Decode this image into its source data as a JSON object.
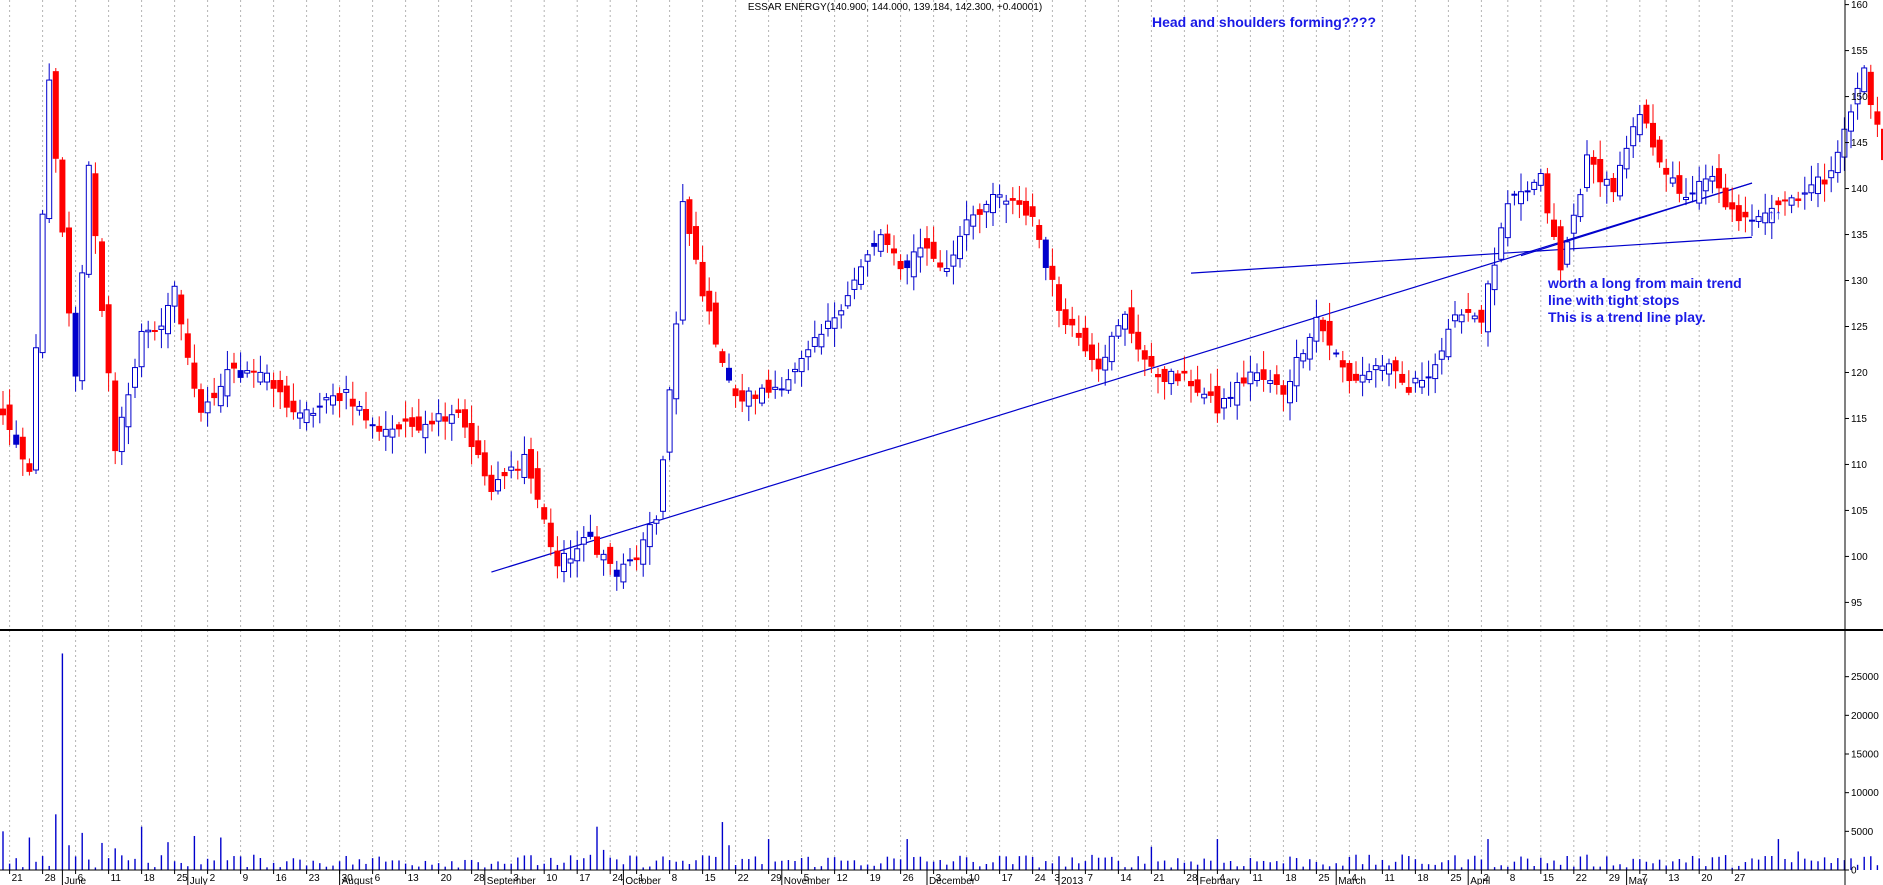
{
  "chart_data": [
    {
      "type": "candlestick",
      "title": "ESSAR ENERGY(140.900, 144.000, 139.184, 142.300, +0.40001)",
      "y_ticks": [
        "160",
        "155",
        "150",
        "145",
        "140",
        "135",
        "130",
        "125",
        "120",
        "115",
        "110",
        "105",
        "100",
        "95"
      ],
      "ylim": [
        92,
        160.5
      ],
      "grid": "vertical dotted",
      "colors": {
        "up": "#ffffff",
        "down": "#ff0000",
        "line": "#0000cc",
        "vol": "#0000cc",
        "neutral": "#0000cc"
      },
      "start_price": 117,
      "segments": [
        [
          5,
          109,
          "v"
        ],
        [
          3,
          151
        ],
        [
          4,
          119
        ],
        [
          2,
          142
        ],
        [
          4,
          112
        ],
        [
          4,
          124
        ],
        [
          2,
          124
        ],
        [
          3,
          129
        ],
        [
          4,
          115
        ],
        [
          5,
          121
        ],
        [
          4,
          120
        ],
        [
          6,
          115
        ],
        [
          7,
          118
        ],
        [
          4,
          114
        ],
        [
          5,
          114
        ],
        [
          8,
          116
        ],
        [
          5,
          107
        ],
        [
          5,
          111
        ],
        [
          5,
          99
        ],
        [
          5,
          102
        ],
        [
          4,
          98
        ],
        [
          3,
          100
        ],
        [
          3,
          104
        ],
        [
          3,
          125
        ],
        [
          1,
          138
        ],
        [
          4,
          126
        ],
        [
          4,
          117
        ],
        [
          5,
          118
        ],
        [
          4,
          120
        ],
        [
          5,
          125
        ],
        [
          4,
          130
        ],
        [
          4,
          135
        ],
        [
          3,
          131
        ],
        [
          3,
          134
        ],
        [
          4,
          131
        ],
        [
          3,
          137
        ],
        [
          5,
          139
        ],
        [
          5,
          137
        ],
        [
          4,
          127
        ],
        [
          6,
          121
        ],
        [
          4,
          126
        ],
        [
          4,
          120
        ],
        [
          6,
          119
        ],
        [
          4,
          116
        ],
        [
          5,
          120
        ],
        [
          5,
          118
        ],
        [
          5,
          126
        ],
        [
          5,
          119
        ],
        [
          5,
          121
        ],
        [
          4,
          118
        ],
        [
          4,
          121
        ],
        [
          4,
          127
        ],
        [
          3,
          126
        ],
        [
          4,
          138
        ],
        [
          5,
          141
        ],
        [
          3,
          131
        ],
        [
          4,
          143
        ],
        [
          4,
          140
        ],
        [
          4,
          148
        ],
        [
          6,
          139
        ],
        [
          5,
          141
        ],
        [
          4,
          136
        ],
        [
          4,
          138
        ],
        [
          4,
          139
        ],
        [
          5,
          141
        ],
        [
          3,
          146
        ],
        [
          3,
          153
        ],
        [
          4,
          140
        ],
        [
          4,
          138
        ],
        [
          5,
          135
        ],
        [
          5,
          140
        ],
        [
          4,
          139
        ],
        [
          4,
          142
        ],
        [
          4,
          137
        ],
        [
          4,
          133
        ],
        [
          4,
          135
        ],
        [
          4,
          141
        ],
        [
          5,
          145
        ],
        [
          4,
          142
        ],
        [
          5,
          143
        ],
        [
          6,
          142
        ]
      ],
      "volume": {
        "y_ticks": [
          "25000",
          "20000",
          "15000",
          "10000",
          "5000",
          "0"
        ],
        "ylim": [
          0,
          30000
        ],
        "spikes": [
          [
            0,
            5000
          ],
          [
            4,
            4200
          ],
          [
            8,
            7200
          ],
          [
            9,
            28000
          ],
          [
            10,
            3200
          ],
          [
            12,
            4800
          ],
          [
            15,
            3500
          ],
          [
            17,
            2800
          ],
          [
            21,
            5600
          ],
          [
            25,
            3600
          ],
          [
            29,
            4400
          ],
          [
            33,
            4200
          ],
          [
            90,
            5600
          ],
          [
            91,
            2600
          ],
          [
            109,
            6200
          ],
          [
            110,
            3200
          ],
          [
            116,
            4000
          ],
          [
            137,
            4000
          ],
          [
            174,
            3000
          ],
          [
            184,
            4000
          ],
          [
            225,
            4000
          ],
          [
            269,
            4000
          ],
          [
            272,
            2400
          ],
          [
            317,
            2800
          ],
          [
            326,
            3200
          ],
          [
            331,
            2000
          ]
        ]
      },
      "x_date_labels": [
        [
          "21",
          1
        ],
        [
          "28",
          6
        ],
        [
          "6",
          11
        ],
        [
          "11",
          16
        ],
        [
          "18",
          21
        ],
        [
          "25",
          26
        ],
        [
          "2",
          31
        ],
        [
          "9",
          36
        ],
        [
          "16",
          41
        ],
        [
          "23",
          46
        ],
        [
          "30",
          51
        ],
        [
          "6",
          56
        ],
        [
          "13",
          61
        ],
        [
          "20",
          66
        ],
        [
          "28",
          71
        ],
        [
          "3",
          77
        ],
        [
          "10",
          82
        ],
        [
          "17",
          87
        ],
        [
          "24",
          92
        ],
        [
          "1",
          96
        ],
        [
          "8",
          101
        ],
        [
          "15",
          106
        ],
        [
          "22",
          111
        ],
        [
          "29",
          116
        ],
        [
          "5",
          121
        ],
        [
          "12",
          126
        ],
        [
          "19",
          131
        ],
        [
          "26",
          136
        ],
        [
          "3",
          141
        ],
        [
          "10",
          146
        ],
        [
          "17",
          151
        ],
        [
          "24",
          156
        ],
        [
          "3",
          159
        ],
        [
          "7",
          164
        ],
        [
          "14",
          169
        ],
        [
          "21",
          174
        ],
        [
          "28",
          179
        ],
        [
          "4",
          184
        ],
        [
          "11",
          189
        ],
        [
          "18",
          194
        ],
        [
          "25",
          199
        ],
        [
          "4",
          204
        ],
        [
          "11",
          209
        ],
        [
          "18",
          214
        ],
        [
          "25",
          219
        ],
        [
          "2",
          224
        ],
        [
          "8",
          228
        ],
        [
          "15",
          233
        ],
        [
          "22",
          238
        ],
        [
          "29",
          243
        ],
        [
          "7",
          248
        ],
        [
          "13",
          252
        ],
        [
          "20",
          257
        ],
        [
          "27",
          262
        ]
      ],
      "x_month_labels": [
        [
          "June",
          9
        ],
        [
          "July",
          28
        ],
        [
          "August",
          51
        ],
        [
          "September",
          73
        ],
        [
          "October",
          94
        ],
        [
          "November",
          118
        ],
        [
          "December",
          140
        ],
        [
          "2013",
          160
        ],
        [
          "February",
          181
        ],
        [
          "March",
          202
        ],
        [
          "April",
          222
        ],
        [
          "May",
          246
        ]
      ],
      "trendlines": [
        {
          "from": [
            74,
            98.3
          ],
          "to": [
            265,
            140.6
          ]
        },
        {
          "from": [
            180,
            130.8
          ],
          "to": [
            265,
            134.7
          ]
        },
        {
          "from": [
            230,
            132.7
          ],
          "to": [
            265,
            140.6
          ]
        }
      ],
      "annotations": {
        "head_shoulders": "Head and shoulders forming????",
        "note_line1": "worth a long from main trend",
        "note_line2": "line with tight stops",
        "note_line3": "This is a trend line play.",
        "arrows": "↑↑"
      }
    }
  ]
}
